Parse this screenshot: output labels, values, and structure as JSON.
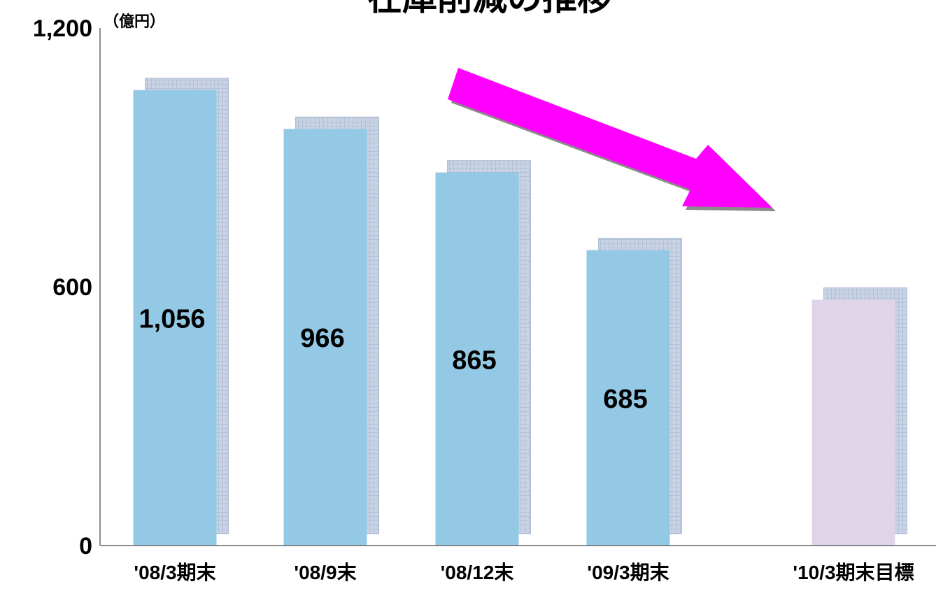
{
  "chart_data": {
    "type": "bar",
    "title": "在庫削減の推移",
    "unit": "（億円）",
    "categories": [
      "'08/3期末",
      "'08/9末",
      "'08/12末",
      "'09/3期末",
      "'10/3期末目標"
    ],
    "values": [
      1056,
      966,
      865,
      685,
      570
    ],
    "value_labels": [
      "1,056",
      "966",
      "865",
      "685",
      ""
    ],
    "yticks": [
      {
        "value": 0,
        "label": "0"
      },
      {
        "value": 600,
        "label": "600"
      },
      {
        "value": 1200,
        "label": "1,200"
      }
    ],
    "ylim": [
      0,
      1200
    ],
    "grid": false,
    "legend": "none",
    "annotations": [
      "downward-trend-arrow"
    ],
    "colors": {
      "actual": "#94C9E6",
      "target": "#E0D4E8",
      "shadow": "#C5D0E2",
      "shadow_grid": "#A9B7CF",
      "arrow": "#FF00FF",
      "arrow_shadow": "#888888",
      "axis": "#666666"
    },
    "target_index": 4
  }
}
